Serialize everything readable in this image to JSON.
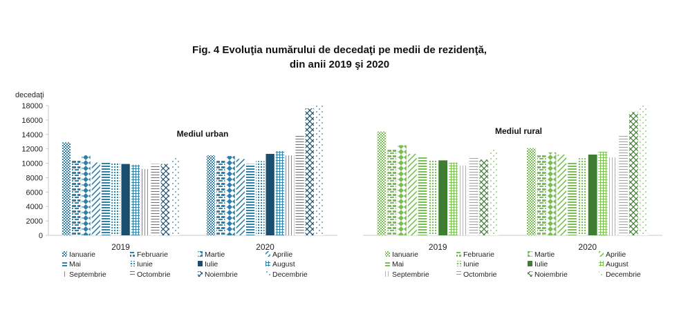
{
  "title_line1": "Fig. 4 Evoluţia numărului de decedaţi pe medii de rezidenţă,",
  "title_line2": "din anii 2019 şi 2020",
  "colors": {
    "urban": "#2f7fa8",
    "urban_dark": "#1b4e6e",
    "rural": "#79bf55",
    "rural_dark": "#3f7d32"
  },
  "chart_data": [
    {
      "type": "bar",
      "title": "Mediul urban",
      "ylabel": "decedaţi",
      "ylim": [
        0,
        18000
      ],
      "yticks": [
        "0",
        "2000",
        "4000",
        "6000",
        "8000",
        "10000",
        "12000",
        "14000",
        "16000",
        "18000"
      ],
      "categories": [
        "2019",
        "2020"
      ],
      "series": [
        {
          "name": "Ianuarie",
          "values": [
            12900,
            11100
          ]
        },
        {
          "name": "Februarie",
          "values": [
            10400,
            10500
          ]
        },
        {
          "name": "Martie",
          "values": [
            11100,
            11000
          ]
        },
        {
          "name": "Aprilie",
          "values": [
            10100,
            10600
          ]
        },
        {
          "name": "Mai",
          "values": [
            10100,
            9900
          ]
        },
        {
          "name": "Iunie",
          "values": [
            10000,
            10300
          ]
        },
        {
          "name": "Iulie",
          "values": [
            9900,
            11300
          ]
        },
        {
          "name": "August",
          "values": [
            9800,
            11700
          ]
        },
        {
          "name": "Septembrie",
          "values": [
            9200,
            11100
          ]
        },
        {
          "name": "Octombrie",
          "values": [
            9900,
            13900
          ]
        },
        {
          "name": "Noiembrie",
          "values": [
            9900,
            17600
          ]
        },
        {
          "name": "Decembrie",
          "values": [
            10900,
            18000
          ]
        }
      ]
    },
    {
      "type": "bar",
      "title": "Mediul rural",
      "ylim": [
        0,
        18000
      ],
      "categories": [
        "2019",
        "2020"
      ],
      "series": [
        {
          "name": "Ianuarie",
          "values": [
            14400,
            12100
          ]
        },
        {
          "name": "Februarie",
          "values": [
            12000,
            11100
          ]
        },
        {
          "name": "Martie",
          "values": [
            12500,
            11500
          ]
        },
        {
          "name": "Aprilie",
          "values": [
            11300,
            11200
          ]
        },
        {
          "name": "Mai",
          "values": [
            11000,
            10200
          ]
        },
        {
          "name": "Iunie",
          "values": [
            10500,
            10700
          ]
        },
        {
          "name": "Iulie",
          "values": [
            10400,
            11200
          ]
        },
        {
          "name": "August",
          "values": [
            10100,
            11600
          ]
        },
        {
          "name": "Septembrie",
          "values": [
            9700,
            10800
          ]
        },
        {
          "name": "Octombrie",
          "values": [
            10800,
            13800
          ]
        },
        {
          "name": "Noiembrie",
          "values": [
            10500,
            17100
          ]
        },
        {
          "name": "Decembrie",
          "values": [
            11900,
            18000
          ]
        }
      ]
    }
  ]
}
